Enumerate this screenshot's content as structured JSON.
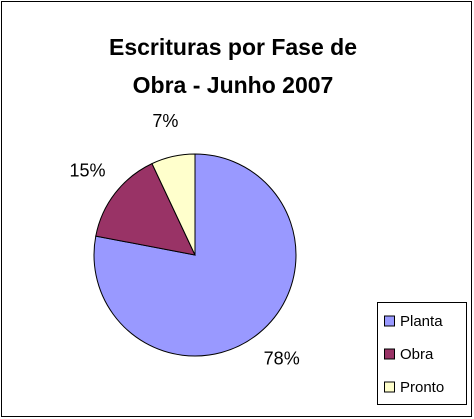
{
  "chart_data": {
    "type": "pie",
    "title": "Escrituras por Fase de Obra - Junho 2007",
    "categories": [
      "Planta",
      "Obra",
      "Pronto"
    ],
    "values": [
      78,
      15,
      7
    ],
    "value_labels": [
      "78%",
      "15%",
      "7%"
    ],
    "colors": [
      "#9999ff",
      "#993366",
      "#ffffcc"
    ],
    "legend": "bottom-right"
  }
}
